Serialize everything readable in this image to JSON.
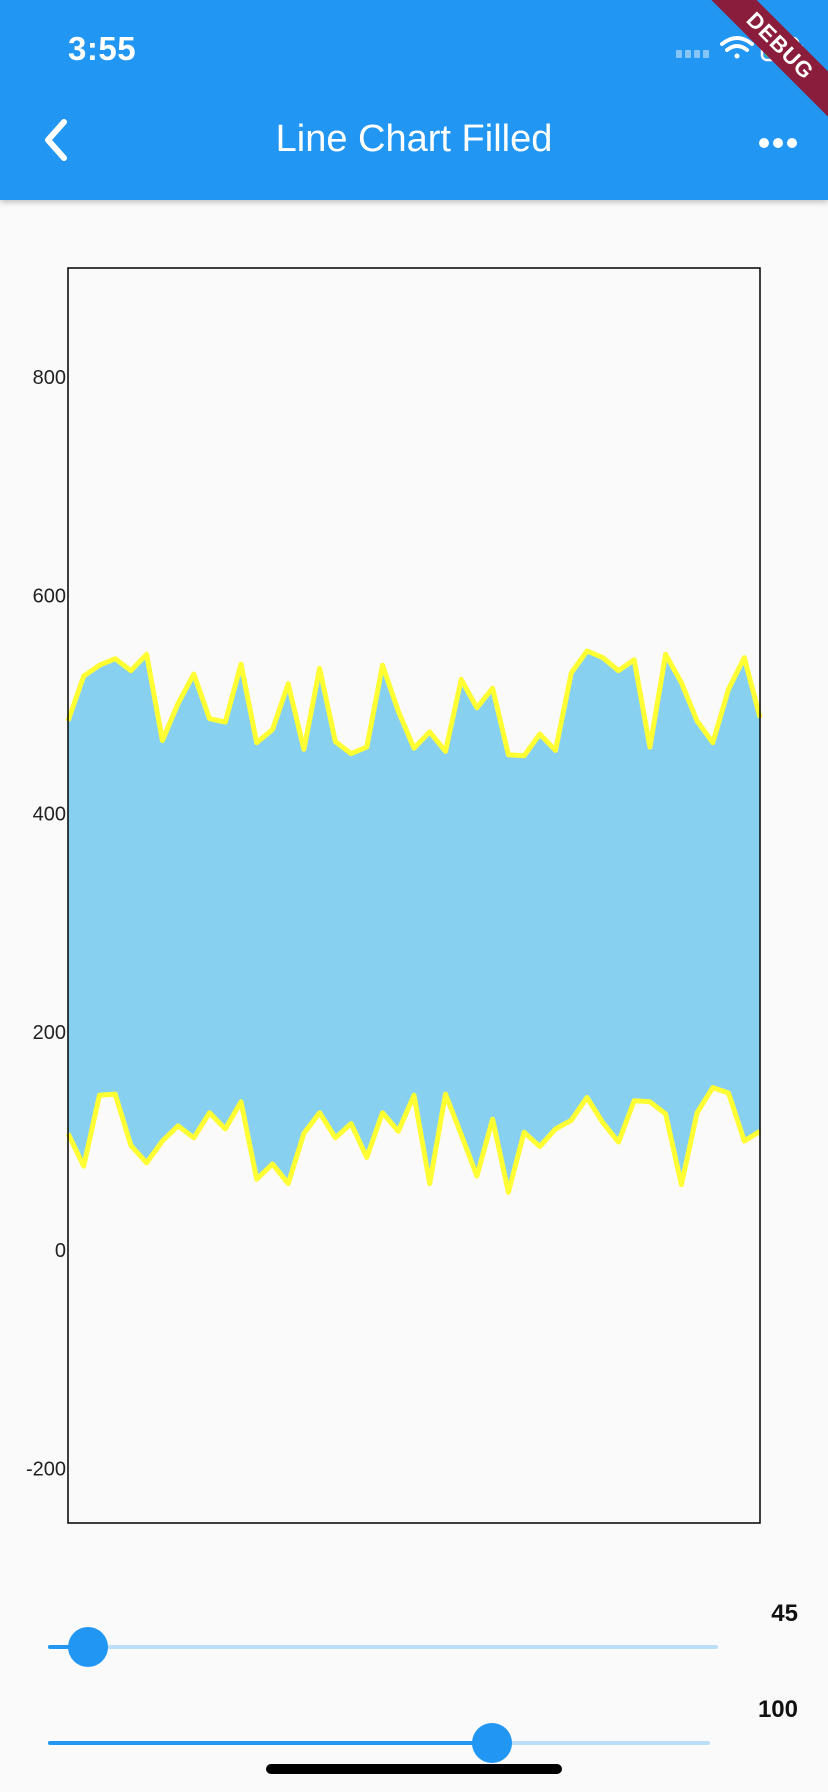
{
  "status": {
    "time": "3:55"
  },
  "appbar": {
    "title": "Line Chart Filled"
  },
  "debug_banner": "DEBUG",
  "chart_data": {
    "type": "area",
    "y_ticks": [
      "800",
      "600",
      "400",
      "200",
      "0",
      "-200"
    ],
    "y_tick_values": [
      800,
      600,
      400,
      200,
      0,
      -200
    ],
    "ylim": [
      -250,
      900
    ],
    "fill_color": "#87d0ef",
    "line_color": "#ffff33",
    "series": [
      {
        "values": [
          485,
          526,
          536,
          542,
          531,
          546,
          467,
          501,
          528,
          487,
          484,
          537,
          465,
          477,
          519,
          459,
          533,
          466,
          455,
          461,
          536,
          494,
          460,
          475,
          457,
          523,
          497,
          515,
          454,
          453,
          473,
          458,
          529,
          549,
          543,
          531,
          541,
          461,
          546,
          520,
          485,
          465,
          514,
          543,
          488
        ]
      },
      {
        "values": [
          107,
          77,
          142,
          143,
          96,
          80,
          100,
          114,
          103,
          126,
          111,
          136,
          65,
          79,
          61,
          107,
          126,
          103,
          116,
          85,
          126,
          109,
          142,
          61,
          143,
          106,
          68,
          120,
          53,
          108,
          95,
          111,
          119,
          140,
          117,
          99,
          137,
          136,
          125,
          60,
          126,
          149,
          144,
          100,
          109
        ]
      }
    ]
  },
  "sliders": [
    {
      "value": "45",
      "fraction": 0.06
    },
    {
      "value": "100",
      "fraction": 0.67
    }
  ],
  "colors": {
    "appbar": "#2196f3",
    "thumb": "#2196f3",
    "track": "#bbdefb"
  }
}
